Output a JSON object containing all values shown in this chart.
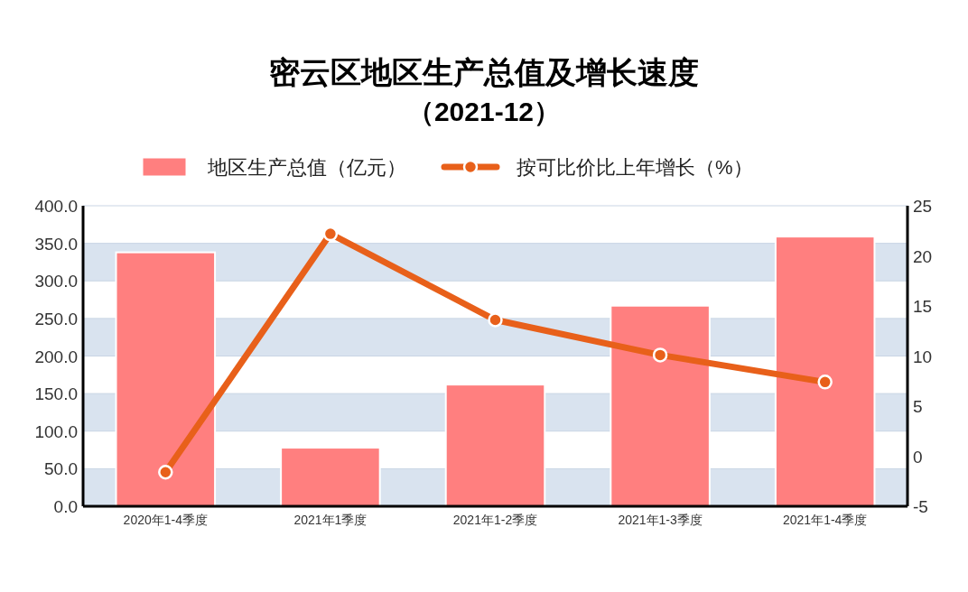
{
  "chart_data": {
    "type": "bar",
    "title": "密云区地区生产总值及增长速度",
    "subtitle": "（2021-12）",
    "categories": [
      "2020年1-4季度",
      "2021年1季度",
      "2021年1-2季度",
      "2021年1-3季度",
      "2021年1-4季度"
    ],
    "series": [
      {
        "name": "地区生产总值（亿元）",
        "color": "#ff7f7f",
        "values": [
          338,
          78,
          162,
          267,
          359
        ]
      },
      {
        "name": "按可比价比上年增长（%）",
        "type": "line",
        "axis": "y2",
        "color": "#e8601a",
        "values": [
          -1.6,
          22.2,
          13.6,
          10.1,
          7.4
        ]
      }
    ],
    "ylim": [
      0,
      400
    ],
    "yticks": [
      {
        "value": 0,
        "label": "0.0"
      },
      {
        "value": 50,
        "label": "50.0"
      },
      {
        "value": 100,
        "label": "100.0"
      },
      {
        "value": 150,
        "label": "150.0"
      },
      {
        "value": 200,
        "label": "200.0"
      },
      {
        "value": 250,
        "label": "250.0"
      },
      {
        "value": 300,
        "label": "300.0"
      },
      {
        "value": 350,
        "label": "350.0"
      },
      {
        "value": 400,
        "label": "400.0"
      }
    ],
    "y2lim": [
      -5,
      25
    ],
    "y2ticks": [
      -5,
      0,
      5,
      10,
      15,
      20,
      25
    ],
    "grid": "y",
    "legend": "top",
    "marker": "circle"
  }
}
